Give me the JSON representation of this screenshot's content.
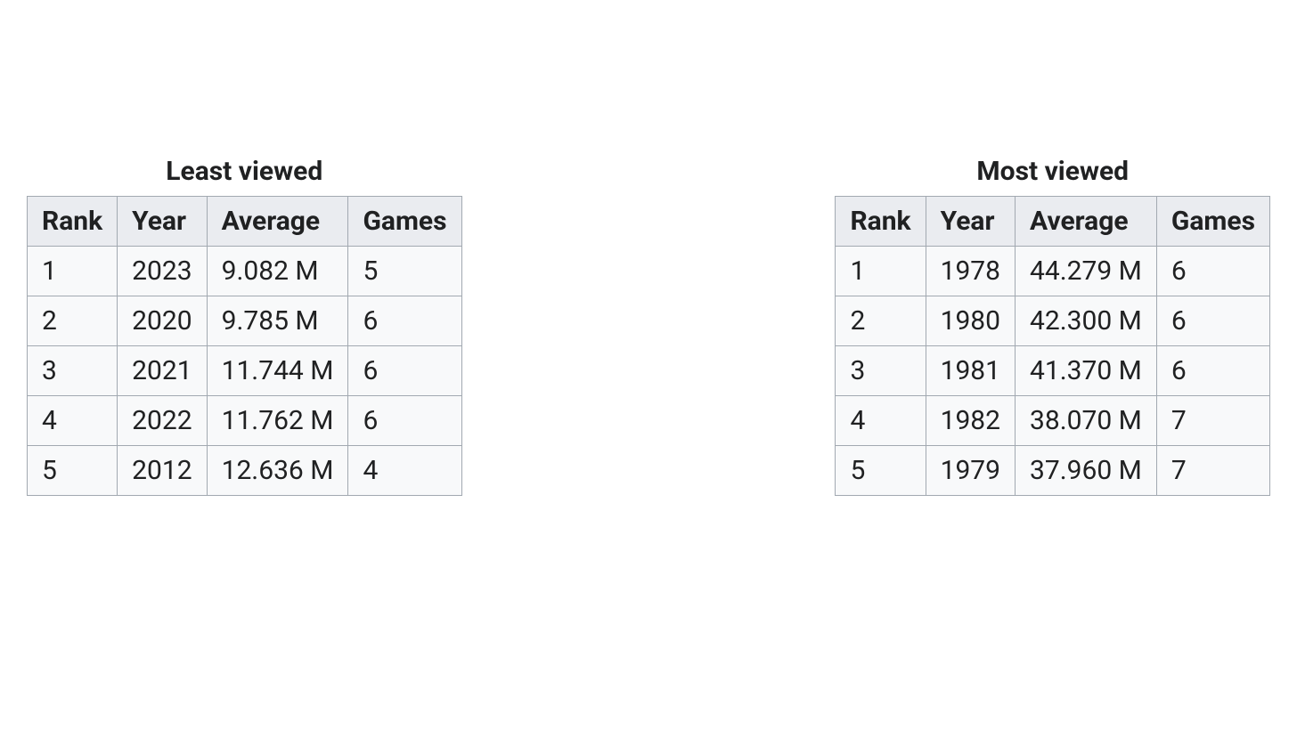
{
  "background_color": "#ffffff",
  "text_color": "#202122",
  "border_color": "#a2a9b1",
  "header_bg": "#eaecf0",
  "body_bg": "#f8f9fa",
  "caption_fontsize": 30,
  "cell_fontsize": 30,
  "tables": {
    "least": {
      "caption": "Least viewed",
      "columns": [
        "Rank",
        "Year",
        "Average",
        "Games"
      ],
      "rows": [
        [
          "1",
          "2023",
          "9.082 M",
          "5"
        ],
        [
          "2",
          "2020",
          "9.785 M",
          "6"
        ],
        [
          "3",
          "2021",
          "11.744 M",
          "6"
        ],
        [
          "4",
          "2022",
          "11.762 M",
          "6"
        ],
        [
          "5",
          "2012",
          "12.636 M",
          "4"
        ]
      ]
    },
    "most": {
      "caption": "Most viewed",
      "columns": [
        "Rank",
        "Year",
        "Average",
        "Games"
      ],
      "rows": [
        [
          "1",
          "1978",
          "44.279 M",
          "6"
        ],
        [
          "2",
          "1980",
          "42.300 M",
          "6"
        ],
        [
          "3",
          "1981",
          "41.370 M",
          "6"
        ],
        [
          "4",
          "1982",
          "38.070 M",
          "7"
        ],
        [
          "5",
          "1979",
          "37.960 M",
          "7"
        ]
      ]
    }
  }
}
